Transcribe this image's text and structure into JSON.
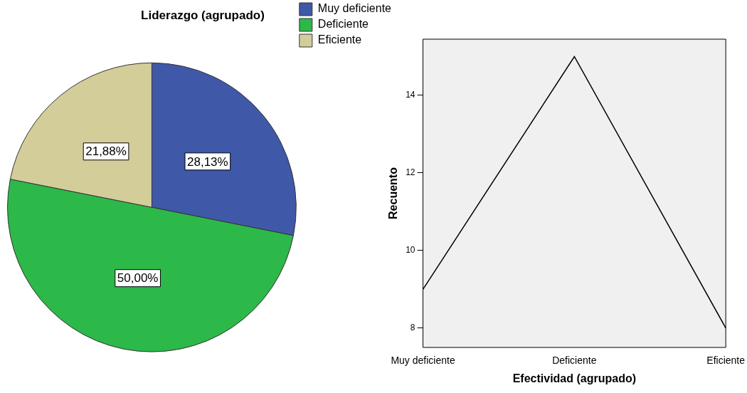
{
  "chart_data": [
    {
      "type": "pie",
      "title": "Liderazgo (agrupado)",
      "categories": [
        "Muy deficiente",
        "Deficiente",
        "Eficiente"
      ],
      "values": [
        28.13,
        50.0,
        21.88
      ],
      "value_labels": [
        "28,13%",
        "50,00%",
        "21,88%"
      ],
      "colors": [
        "#3f58a8",
        "#2db84a",
        "#d3cd9a"
      ],
      "legend": "right"
    },
    {
      "type": "line",
      "xlabel": "Efectividad (agrupado)",
      "ylabel": "Recuento",
      "categories": [
        "Muy deficiente",
        "Deficiente",
        "Eficiente"
      ],
      "values": [
        9,
        15,
        8
      ],
      "color": "#000000",
      "marker": "none",
      "ylim": [
        7.5,
        15.45
      ],
      "yticks": [
        8,
        10,
        12,
        14
      ]
    }
  ]
}
